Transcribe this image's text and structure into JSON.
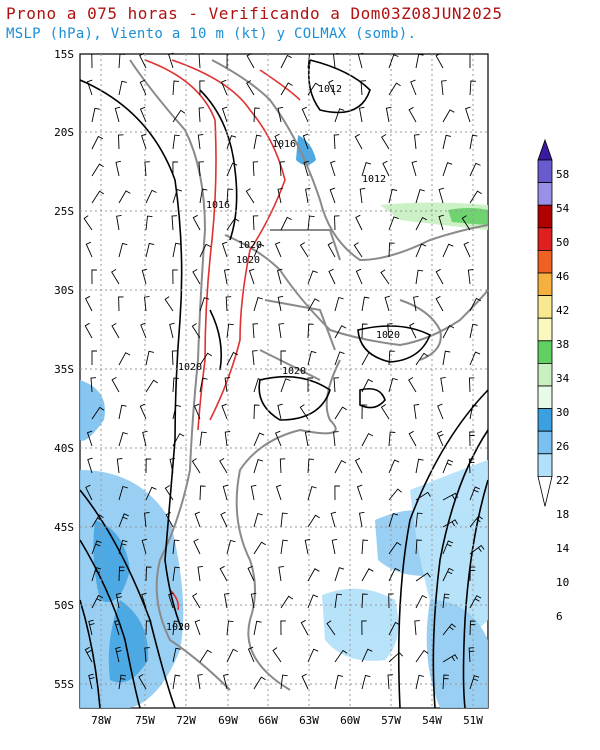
{
  "title": "Prono a 075 horas - Verificando a Dom03Z08JUN2025",
  "subtitle": "MSLP (hPa), Viento a 10 m (kt) y COLMAX (somb).",
  "map": {
    "lat_ticks": [
      "15S",
      "20S",
      "25S",
      "30S",
      "35S",
      "40S",
      "45S",
      "50S",
      "55S"
    ],
    "lon_ticks": [
      "78W",
      "75W",
      "72W",
      "69W",
      "66W",
      "63W",
      "60W",
      "57W",
      "54W",
      "51W"
    ],
    "isobar_labels": [
      "1012",
      "1012",
      "1016",
      "1016",
      "1020",
      "1020",
      "1020",
      "1020",
      "1020",
      "1020"
    ],
    "colors": {
      "isobar": "#000000",
      "border": "#808080",
      "red_contour": "#e03030",
      "grid": "#999999"
    }
  },
  "colorbar": {
    "labels": [
      "58",
      "54",
      "50",
      "46",
      "42",
      "38",
      "34",
      "30",
      "26",
      "22",
      "18",
      "14",
      "10",
      "6"
    ],
    "colors": [
      "#3a1aa0",
      "#6a5ad0",
      "#9a90e8",
      "#b00000",
      "#e02020",
      "#f06020",
      "#f5b040",
      "#f8e890",
      "#fafac0",
      "#60d060",
      "#c8f0c0",
      "#e8fae8",
      "#3aa0e0",
      "#7ac0f0",
      "#b0e0fa",
      "#e0f8ff"
    ]
  }
}
